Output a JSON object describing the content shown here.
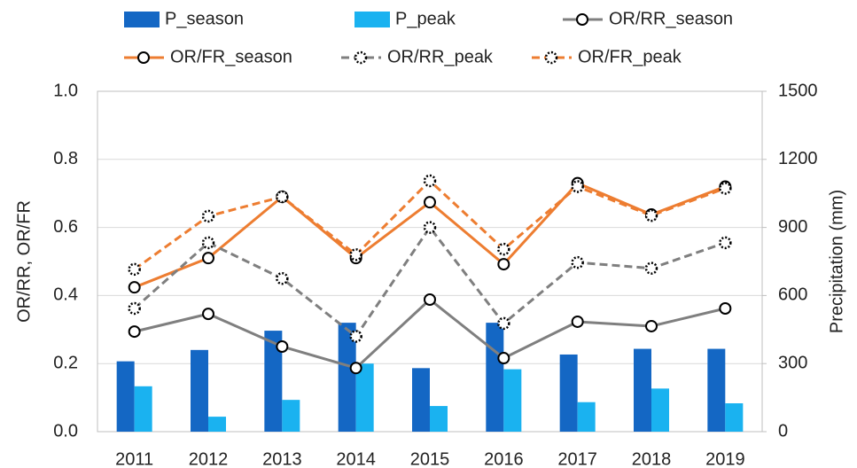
{
  "chart_data": {
    "type": "bar-line",
    "ylabel": "OR/RR, OR/FR",
    "y2label": "Precipitation (mm)",
    "categories": [
      "2011",
      "2012",
      "2013",
      "2014",
      "2015",
      "2016",
      "2017",
      "2018",
      "2019"
    ],
    "ylim": [
      0,
      1
    ],
    "yticks": [
      {
        "value": 0,
        "label": "0.0"
      },
      0.2,
      0.4,
      0.6,
      0.8,
      {
        "value": 1,
        "label": "1.0"
      }
    ],
    "y2lim": [
      0,
      1500
    ],
    "y2ticks": [
      0,
      300,
      600,
      900,
      1200,
      1500
    ],
    "grid": true,
    "legend": "top",
    "series": [
      {
        "name": "P_season",
        "type": "bar",
        "axis": "y2",
        "color": "#1467c4",
        "values": [
          310,
          360,
          445,
          480,
          280,
          480,
          340,
          365,
          365
        ]
      },
      {
        "name": "P_peak",
        "type": "bar",
        "axis": "y2",
        "color": "#1ab2f0",
        "values": [
          200,
          66,
          140,
          300,
          113,
          275,
          130,
          190,
          125
        ]
      },
      {
        "name": "OR/RR_season",
        "type": "line",
        "dashed": false,
        "color": "#7f7f7f",
        "values": [
          0.294,
          0.346,
          0.25,
          0.187,
          0.388,
          0.216,
          0.323,
          0.31,
          0.362
        ]
      },
      {
        "name": "OR/FR_season",
        "type": "line",
        "dashed": false,
        "color": "#ed7d31",
        "values": [
          0.424,
          0.51,
          0.69,
          0.51,
          0.674,
          0.492,
          0.73,
          0.638,
          0.72
        ]
      },
      {
        "name": "OR/RR_peak",
        "type": "line",
        "dashed": true,
        "color": "#7f7f7f",
        "values": [
          0.362,
          0.555,
          0.45,
          0.28,
          0.6,
          0.318,
          0.497,
          0.48,
          0.555
        ]
      },
      {
        "name": "OR/FR_peak",
        "type": "line",
        "dashed": true,
        "color": "#ed7d31",
        "values": [
          0.477,
          0.633,
          0.69,
          0.52,
          0.737,
          0.536,
          0.72,
          0.635,
          0.715
        ]
      }
    ]
  }
}
